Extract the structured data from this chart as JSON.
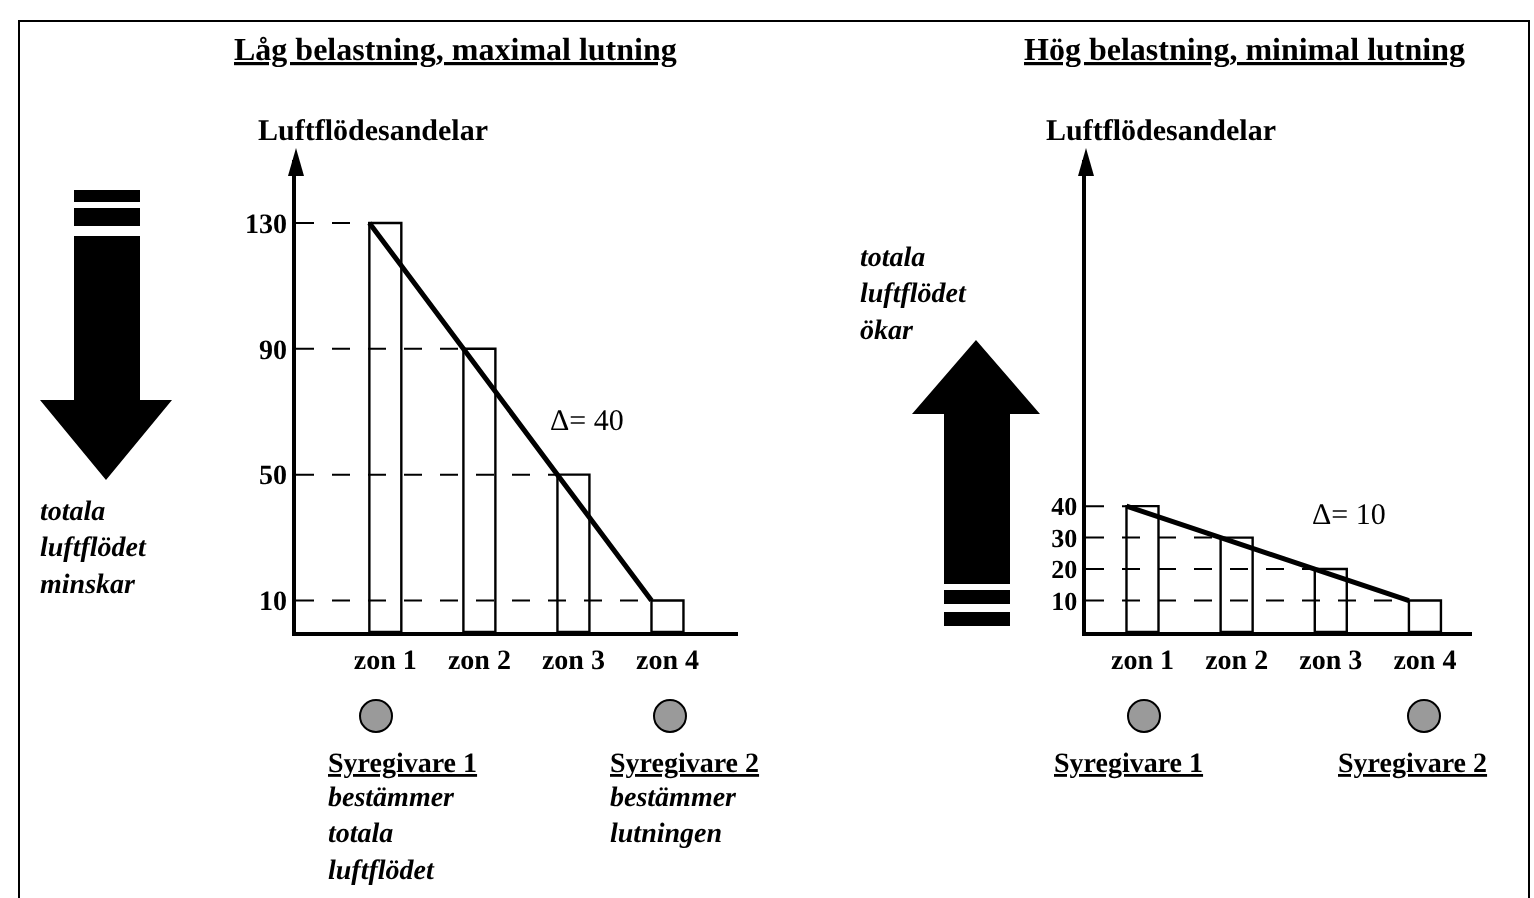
{
  "chart_data": [
    {
      "type": "bar",
      "title": "Låg belastning, maximal lutning",
      "ylabel": "Luftflödesandelar",
      "categories": [
        "zon 1",
        "zon 2",
        "zon 3",
        "zon 4"
      ],
      "series": [
        {
          "color": "#ffffff",
          "values": [
            130,
            90,
            50,
            10
          ]
        },
        {
          "type": "line",
          "color": "#000000",
          "values": [
            130,
            90,
            50,
            10
          ]
        }
      ],
      "ylim": [
        0,
        150
      ],
      "yticks": [
        10,
        50,
        90,
        130
      ],
      "ref_lines": [
        {
          "axis": "y",
          "value": 130,
          "line_style": "dashed"
        },
        {
          "axis": "y",
          "value": 90,
          "line_style": "dashed"
        },
        {
          "axis": "y",
          "value": 50,
          "line_style": "dashed"
        },
        {
          "axis": "y",
          "value": 10,
          "line_style": "dashed"
        }
      ],
      "annotations": [
        "Δ= 40",
        "totala\nluftflödet\nminskar",
        "Syregivare 1",
        "bestämmer\ntotala\nluftflödet",
        "Syregivare 2",
        "bestämmer\nlutningen"
      ]
    },
    {
      "type": "bar",
      "title": "Hög belastning, minimal lutning",
      "ylabel": "Luftflödesandelar",
      "categories": [
        "zon 1",
        "zon 2",
        "zon 3",
        "zon 4"
      ],
      "series": [
        {
          "color": "#ffffff",
          "values": [
            40,
            30,
            20,
            10
          ]
        },
        {
          "type": "line",
          "color": "#000000",
          "values": [
            40,
            30,
            20,
            10
          ]
        }
      ],
      "ylim": [
        0,
        150
      ],
      "yticks": [
        10,
        20,
        30,
        40
      ],
      "ref_lines": [
        {
          "axis": "y",
          "value": 40,
          "line_style": "dashed"
        },
        {
          "axis": "y",
          "value": 30,
          "line_style": "dashed"
        },
        {
          "axis": "y",
          "value": 20,
          "line_style": "dashed"
        },
        {
          "axis": "y",
          "value": 10,
          "line_style": "dashed"
        }
      ],
      "annotations": [
        "Δ= 10",
        "totala\nluftflödet\nökar",
        "Syregivare 1",
        "Syregivare 2"
      ]
    }
  ]
}
